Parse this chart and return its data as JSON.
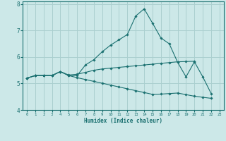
{
  "xlabel": "Humidex (Indice chaleur)",
  "background_color": "#cce8e8",
  "grid_color": "#aacfcf",
  "line_color": "#1a7070",
  "xlim": [
    -0.5,
    23.5
  ],
  "ylim": [
    4,
    8.1
  ],
  "yticks": [
    4,
    5,
    6,
    7,
    8
  ],
  "xticks": [
    0,
    1,
    2,
    3,
    4,
    5,
    6,
    7,
    8,
    9,
    10,
    11,
    12,
    13,
    14,
    15,
    16,
    17,
    18,
    19,
    20,
    21,
    22,
    23
  ],
  "curves": [
    {
      "x": [
        0,
        1,
        2,
        3,
        4,
        5,
        6,
        7,
        8,
        9,
        10,
        11,
        12,
        13,
        14,
        15,
        16,
        17,
        18,
        19,
        20,
        21,
        22
      ],
      "y": [
        5.2,
        5.3,
        5.3,
        5.3,
        5.45,
        5.3,
        5.3,
        5.7,
        5.9,
        6.2,
        6.45,
        6.65,
        6.85,
        7.55,
        7.82,
        7.28,
        6.72,
        6.5,
        5.8,
        5.25,
        5.82,
        5.25,
        4.62
      ]
    },
    {
      "x": [
        0,
        1,
        2,
        3,
        4,
        5,
        6,
        7,
        8,
        9,
        10,
        11,
        12,
        13,
        14,
        15,
        16,
        17,
        18,
        19,
        20
      ],
      "y": [
        5.2,
        5.3,
        5.3,
        5.3,
        5.45,
        5.32,
        5.35,
        5.42,
        5.5,
        5.55,
        5.58,
        5.61,
        5.64,
        5.67,
        5.7,
        5.73,
        5.76,
        5.79,
        5.82,
        5.83,
        5.84
      ]
    },
    {
      "x": [
        0,
        1,
        2,
        3,
        4,
        5,
        6,
        7,
        8,
        9,
        10,
        11,
        12,
        13,
        14,
        15,
        16,
        17,
        18,
        19,
        20,
        21,
        22
      ],
      "y": [
        5.2,
        5.3,
        5.3,
        5.3,
        5.45,
        5.3,
        5.22,
        5.15,
        5.08,
        5.01,
        4.94,
        4.87,
        4.8,
        4.73,
        4.66,
        4.59,
        4.6,
        4.62,
        4.64,
        4.58,
        4.52,
        4.48,
        4.44
      ]
    }
  ]
}
